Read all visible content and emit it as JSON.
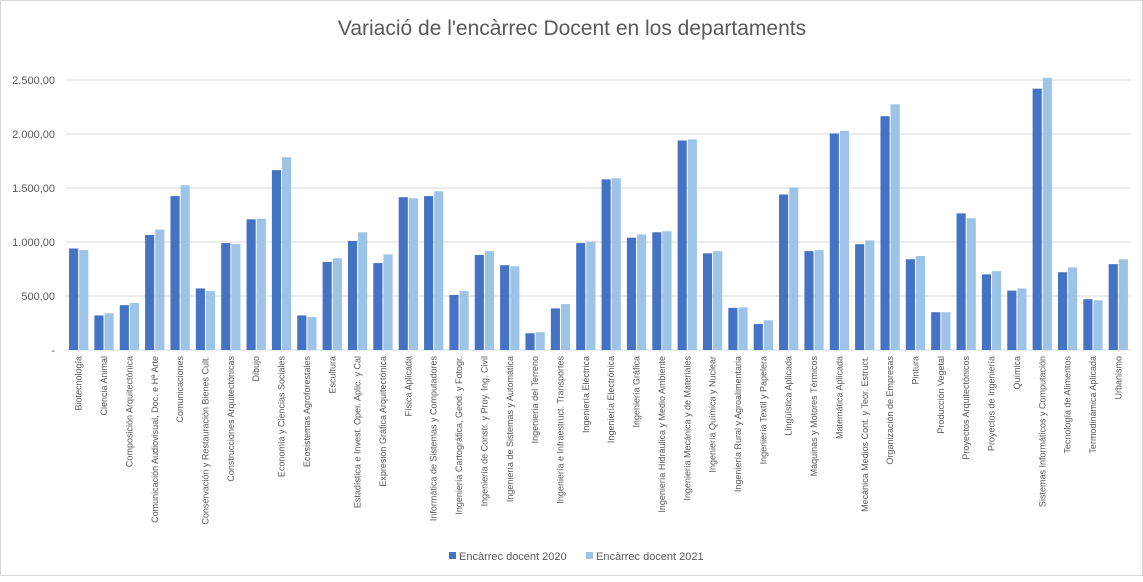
{
  "chart_data": {
    "type": "bar",
    "title": "Variació de l'encàrrec Docent en los departaments",
    "xlabel": "",
    "ylabel": "",
    "ylim": [
      0,
      2500
    ],
    "yticks": [
      0,
      500,
      1000,
      1500,
      2000,
      2500
    ],
    "ytick_labels": [
      "-",
      "500,00",
      "1.000,00",
      "1.500,00",
      "2.000,00",
      "2.500,00"
    ],
    "grid": true,
    "legend_position": "bottom",
    "categories": [
      "Biotecnología",
      "Ciencia Animal",
      "Composición Arquitectónica",
      "Comunicación Audiovisual, Doc. e Hª Arte",
      "Comunicaciones",
      "Conservación y Restauración Bienes Cult.",
      "Construcciones Arquitectónicas",
      "Dibujo",
      "Economía y Ciencias Sociales",
      "Ecosistemas Agroforestales",
      "Escultura",
      "Estadística e Invest. Oper. Aplic. y Cal",
      "Expresión Gráfica Arquitectónica",
      "Física Aplicada",
      "Informática de Sistemas y Computadores",
      "Ingeniería Cartográfica, Geod. y Fotogr.",
      "Ingeniería de Constr. y Proy. Ing. Civil",
      "Ingeniería de Sistemas y Automática",
      "Ingeniería del Terreno",
      "Ingeniería e Infraestruct. Transportes",
      "Ingeniería Eléctrica",
      "Ingeniería Electrónica",
      "Ingeniería Gráfica",
      "Ingeniería Hidráulica y Medio Ambiente",
      "Ingeniería Mecánica y de Materiales",
      "Ingeniería Química y Nuclear",
      "Ingeniería Rural y Agroalimentaria",
      "Ingeniería Textil y Papelera",
      "Lingüística Aplicada",
      "Máquinas y Motores Térmicos",
      "Matemática Aplicada",
      "Mecánica Medios Cont. y Teor. Estruct.",
      "Organización de Empresas",
      "Pintura",
      "Producción Vegetal",
      "Proyectos Arquitectónicos",
      "Proyectos de Ingeniería",
      "Química",
      "Sistemas Informáticos y Computación",
      "Tecnología de Alimentos",
      "Termodinámica Aplicada",
      "Urbanismo"
    ],
    "series": [
      {
        "name": "Encàrrec docent 2020",
        "color": "#4472c4",
        "values": [
          940,
          320,
          415,
          1065,
          1425,
          570,
          990,
          1210,
          1665,
          320,
          815,
          1010,
          805,
          1415,
          1425,
          510,
          880,
          785,
          155,
          385,
          990,
          1580,
          1040,
          1090,
          1940,
          895,
          390,
          240,
          1440,
          915,
          2005,
          980,
          2165,
          840,
          350,
          1265,
          700,
          550,
          2420,
          720,
          470,
          795
        ]
      },
      {
        "name": "Encàrrec docent 2021",
        "color": "#9dc3e6",
        "values": [
          925,
          340,
          435,
          1115,
          1525,
          545,
          980,
          1215,
          1785,
          305,
          850,
          1090,
          885,
          1405,
          1470,
          545,
          915,
          775,
          165,
          425,
          1005,
          1590,
          1070,
          1100,
          1950,
          915,
          395,
          275,
          1505,
          925,
          2030,
          1015,
          2275,
          870,
          350,
          1220,
          730,
          570,
          2520,
          765,
          460,
          840
        ]
      }
    ]
  }
}
